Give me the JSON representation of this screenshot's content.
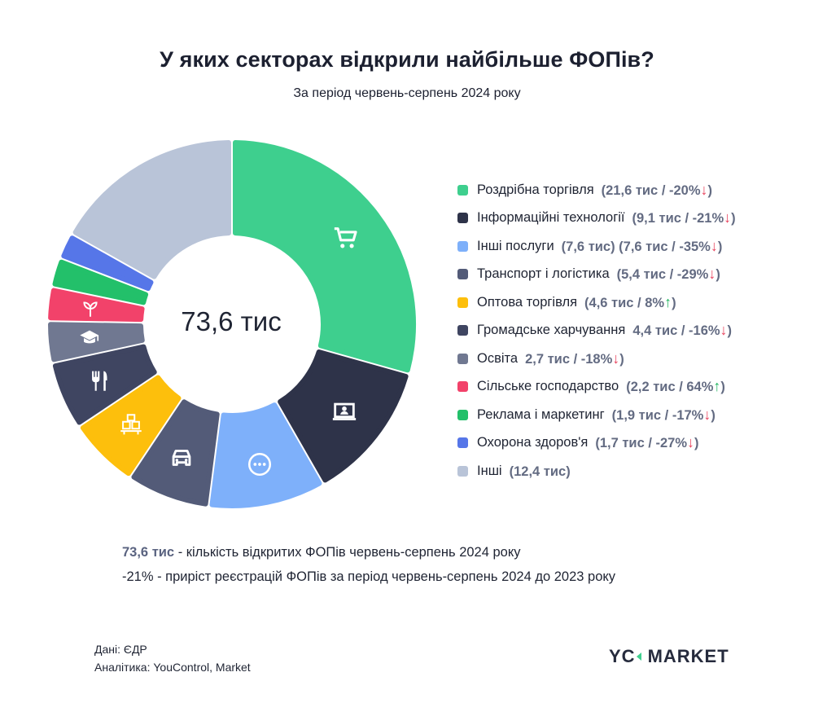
{
  "header": {
    "title": "У яких секторах відкрили найбільше ФОПів?",
    "subtitle": "За період червень-серпень 2024 року"
  },
  "center_label": "73,6 тис",
  "legend": [
    {
      "name": "Роздрібна торгівля",
      "value": "(21,6 тис / -20%",
      "arrow": "↓",
      "dir": "down",
      "close": ")",
      "color": "#3ecf8e",
      "icon": "shopping-cart-icon"
    },
    {
      "name": "Інформаційні технології",
      "value": "(9,1 тис / -21%",
      "arrow": "↓",
      "dir": "down",
      "close": ")",
      "color": "#2e3349",
      "icon": "laptop-user-icon"
    },
    {
      "name": "Інші послуги",
      "value": "(7,6 тис)  (7,6 тис / -35%",
      "arrow": "↓",
      "dir": "down",
      "close": ")",
      "color": "#7eb0fa",
      "icon": "more-dots-icon"
    },
    {
      "name": "Транспорт і логістика",
      "value": "(5,4 тис / -29%",
      "arrow": "↓",
      "dir": "down",
      "close": ")",
      "color": "#535b78",
      "icon": "car-icon"
    },
    {
      "name": "Оптова торгівля",
      "value": "(4,6 тис / 8%",
      "arrow": "↑",
      "dir": "up",
      "close": ")",
      "color": "#fdbf0c",
      "icon": "boxes-icon"
    },
    {
      "name": "Громадське харчування",
      "value": "4,4 тис / -16%",
      "arrow": "↓",
      "dir": "down",
      "close": ")",
      "color": "#3f4561",
      "icon": "fork-knife-icon"
    },
    {
      "name": "Освіта",
      "value": "2,7 тис / -18%",
      "arrow": "↓",
      "dir": "down",
      "close": ")",
      "color": "#707891",
      "icon": "graduation-cap-icon"
    },
    {
      "name": "Сільське господарство",
      "value": "(2,2 тис / 64%",
      "arrow": "↑",
      "dir": "up",
      "close": ")",
      "color": "#f2426a",
      "icon": "sprout-icon"
    },
    {
      "name": "Реклама і маркетинг",
      "value": "(1,9 тис / -17%",
      "arrow": "↓",
      "dir": "down",
      "close": ")",
      "color": "#23c06a",
      "icon": ""
    },
    {
      "name": "Охорона здоров'я",
      "value": "(1,7 тис / -27%",
      "arrow": "↓",
      "dir": "down",
      "close": ")",
      "color": "#5676e8",
      "icon": ""
    },
    {
      "name": "Інші",
      "value": "(12,4 тис)",
      "arrow": "",
      "dir": "",
      "close": "",
      "color": "#b9c4d8",
      "icon": ""
    }
  ],
  "notes": {
    "line1_highlight": "73,6 тис",
    "line1_text": " - кількість відкритих ФОПів червень-серпень 2024 року",
    "line2_text": "-21% - приріст реєстрацій ФОПів за період червень-серпень 2024 до 2023 року"
  },
  "sources": {
    "data": "Дані:  ЄДР",
    "analytics": "Аналітика: YouControl, Market"
  },
  "logo": {
    "left": "YC",
    "right": "MARKET"
  },
  "chart_data": {
    "type": "pie",
    "variant": "donut",
    "title": "У яких секторах відкрили найбільше ФОПів?",
    "subtitle": "За період червень-серпень 2024 року",
    "unit": "тис",
    "total": 73.6,
    "center_label": "73,6 тис",
    "legend_position": "right",
    "categories": [
      "Роздрібна торгівля",
      "Інформаційні технології",
      "Інші послуги",
      "Транспорт і логістика",
      "Оптова торгівля",
      "Громадське харчування",
      "Освіта",
      "Сільське господарство",
      "Реклама і маркетинг",
      "Охорона здоров'я",
      "Інші"
    ],
    "values": [
      21.6,
      9.1,
      7.6,
      5.4,
      4.6,
      4.4,
      2.7,
      2.2,
      1.9,
      1.7,
      12.4
    ],
    "change_yoy_pct": [
      -20,
      -21,
      -35,
      -29,
      8,
      -16,
      -18,
      64,
      -17,
      -27,
      null
    ],
    "colors": [
      "#3ecf8e",
      "#2e3349",
      "#7eb0fa",
      "#535b78",
      "#fdbf0c",
      "#3f4561",
      "#707891",
      "#f2426a",
      "#23c06a",
      "#5676e8",
      "#b9c4d8"
    ]
  }
}
